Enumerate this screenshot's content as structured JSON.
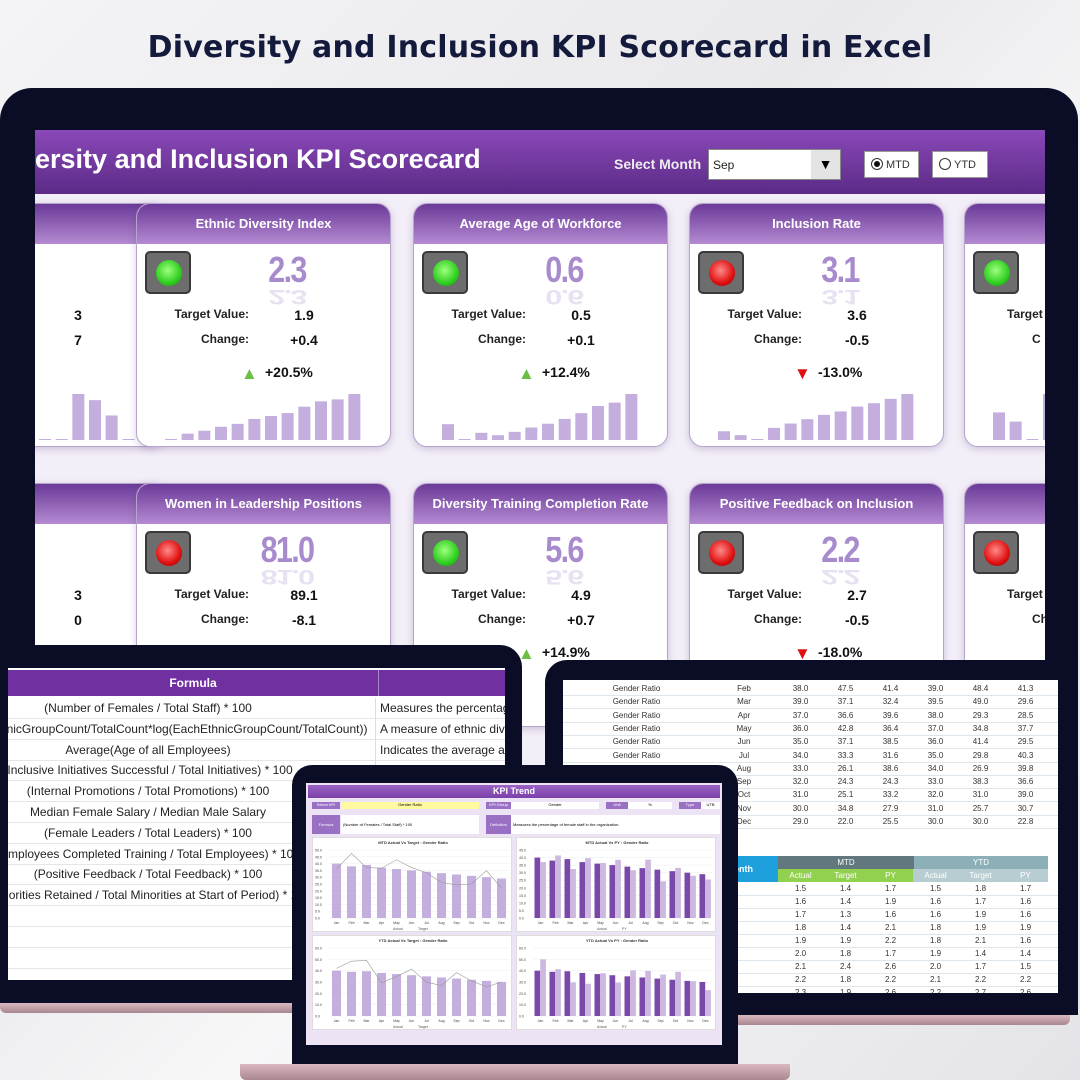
{
  "page_title": "Diversity and Inclusion KPI Scorecard in Excel",
  "dashboard": {
    "title": "Diversity and Inclusion KPI Scorecard",
    "select_month_label": "Select Month",
    "selected_month": "Sep",
    "dropdown_icon": "triangle-down",
    "mtd_label": "MTD",
    "ytd_label": "YTD",
    "period_selected": "MTD",
    "target_label": "Target Value:",
    "change_label": "Change:",
    "colors": {
      "header": "#6b3a98",
      "value": "#a88bcc",
      "spark": "#c4aede",
      "up": "#6abf45",
      "down": "#e01010"
    },
    "cards": [
      {
        "row": 1,
        "title": "",
        "status": "",
        "value": "",
        "target": "3",
        "change": "7",
        "pct": "",
        "dir": "",
        "spark": [
          0,
          0,
          0,
          0,
          0,
          0,
          0,
          0,
          3,
          2.6,
          1.6,
          0
        ]
      },
      {
        "row": 1,
        "title": "Ethnic Diversity Index",
        "status": "green",
        "value": "2.3",
        "target": "1.9",
        "change": "+0.4",
        "pct": "+20.5%",
        "dir": "up",
        "spark": [
          0,
          1.3,
          1.9,
          2.7,
          3.3,
          4.3,
          4.9,
          5.5,
          6.8,
          7.9,
          8.3,
          9.4
        ]
      },
      {
        "row": 1,
        "title": "Average Age of Workforce",
        "status": "green",
        "value": "0.6",
        "target": "0.5",
        "change": "+0.1",
        "pct": "+12.4%",
        "dir": "up",
        "spark": [
          3.3,
          0,
          1.5,
          1,
          1.7,
          2.6,
          3.4,
          4.4,
          5.6,
          7.1,
          7.8,
          9.6
        ]
      },
      {
        "row": 1,
        "title": "Inclusion Rate",
        "status": "red",
        "value": "3.1",
        "target": "3.6",
        "change": "-0.5",
        "pct": "-13.0%",
        "dir": "down",
        "spark": [
          1.8,
          1,
          0,
          2.5,
          3.4,
          4.3,
          5.2,
          5.9,
          6.9,
          7.6,
          8.5,
          9.5
        ]
      },
      {
        "row": 1,
        "title": "Inte",
        "status": "green",
        "value": "",
        "target": "",
        "change": "",
        "pct": "",
        "dir": "",
        "lbl_partial": [
          "Target",
          "C"
        ],
        "spark": [
          1.5,
          1,
          0,
          2.5,
          0,
          0,
          0,
          0,
          0,
          0,
          0,
          0
        ]
      },
      {
        "row": 2,
        "title": "",
        "status": "",
        "value": "",
        "target": "3",
        "change": "0",
        "pct": "",
        "dir": "",
        "spark": []
      },
      {
        "row": 2,
        "title": "Women in Leadership Positions",
        "status": "red",
        "value": "81.0",
        "target": "89.1",
        "change": "-8.1",
        "pct": "-9.1%",
        "dir": "down",
        "spark": []
      },
      {
        "row": 2,
        "title": "Diversity Training Completion Rate",
        "status": "green",
        "value": "5.6",
        "target": "4.9",
        "change": "+0.7",
        "pct": "+14.9%",
        "dir": "up",
        "spark": []
      },
      {
        "row": 2,
        "title": "Positive Feedback on Inclusion",
        "status": "red",
        "value": "2.2",
        "target": "2.7",
        "change": "-0.5",
        "pct": "-18.0%",
        "dir": "down",
        "spark": []
      },
      {
        "row": 2,
        "title": "Minorit",
        "status": "red",
        "value": "",
        "target": "",
        "change": "",
        "pct": "",
        "dir": "",
        "lbl_partial": [
          "Target",
          "Ch"
        ],
        "spark": []
      }
    ]
  },
  "formula_sheet": {
    "header": "Formula",
    "rows": [
      {
        "formula": "(Number of Females / Total Staff) * 100",
        "desc": "Measures the percentage"
      },
      {
        "formula": "-Sum(EachEthnicGroupCount/TotalCount*log(EachEthnicGroupCount/TotalCount))",
        "desc": "A measure of ethnic dive"
      },
      {
        "formula": "Average(Age of all Employees)",
        "desc": "Indicates the average age"
      },
      {
        "formula": "(Inclusive Initiatives Successful / Total Initiatives) * 100",
        "desc": "Percentage of successful"
      },
      {
        "formula": "(Internal Promotions / Total Promotions) * 100",
        "desc": ""
      },
      {
        "formula": "Median Female Salary / Median Male Salary",
        "desc": ""
      },
      {
        "formula": "(Female Leaders / Total Leaders) * 100",
        "desc": ""
      },
      {
        "formula": "(Employees Completed Training / Total Employees) * 100",
        "desc": ""
      },
      {
        "formula": "(Positive Feedback / Total Feedback) * 100",
        "desc": ""
      },
      {
        "formula": "(Minorities Retained / Total Minorities at Start of Period) * 100",
        "desc": ""
      }
    ]
  },
  "data_sheet": {
    "rows": [
      [
        "Gender Ratio",
        "Feb",
        "38.0",
        "47.5",
        "41.4",
        "39.0",
        "48.4",
        "41.3"
      ],
      [
        "Gender Ratio",
        "Mar",
        "39.0",
        "37.1",
        "32.4",
        "39.5",
        "49.0",
        "29.6"
      ],
      [
        "Gender Ratio",
        "Apr",
        "37.0",
        "36.6",
        "39.6",
        "38.0",
        "29.3",
        "28.5"
      ],
      [
        "Gender Ratio",
        "May",
        "36.0",
        "42.8",
        "36.4",
        "37.0",
        "34.8",
        "37.7"
      ],
      [
        "Gender Ratio",
        "Jun",
        "35.0",
        "37.1",
        "38.5",
        "36.0",
        "41.4",
        "29.5"
      ],
      [
        "Gender Ratio",
        "Jul",
        "34.0",
        "33.3",
        "31.6",
        "35.0",
        "29.8",
        "40.3"
      ],
      [
        "",
        "Aug",
        "33.0",
        "26.1",
        "38.6",
        "34.0",
        "26.9",
        "39.8"
      ],
      [
        "",
        "Sep",
        "32.0",
        "24.3",
        "24.3",
        "33.0",
        "38.3",
        "36.6"
      ],
      [
        "",
        "Oct",
        "31.0",
        "25.1",
        "33.2",
        "32.0",
        "31.0",
        "39.0"
      ],
      [
        "",
        "Nov",
        "30.0",
        "34.8",
        "27.9",
        "31.0",
        "25.7",
        "30.7"
      ],
      [
        "",
        "Dec",
        "29.0",
        "22.0",
        "25.5",
        "30.0",
        "30.0",
        "22.8"
      ]
    ],
    "summary": {
      "month_header": "Month",
      "mtd": "MTD",
      "ytd": "YTD",
      "sub": [
        "Actual",
        "Target",
        "PY",
        "Actual",
        "Target",
        "PY"
      ],
      "rows": [
        [
          "Jan",
          "1.5",
          "1.4",
          "1.7",
          "1.5",
          "1.8",
          "1.7"
        ],
        [
          "Feb",
          "1.6",
          "1.4",
          "1.9",
          "1.6",
          "1.7",
          "1.6"
        ],
        [
          "Mar",
          "1.7",
          "1.3",
          "1.6",
          "1.6",
          "1.9",
          "1.6"
        ],
        [
          "Apr",
          "1.8",
          "1.4",
          "2.1",
          "1.8",
          "1.9",
          "1.9"
        ],
        [
          "May",
          "1.9",
          "1.9",
          "2.2",
          "1.8",
          "2.1",
          "1.6"
        ],
        [
          "Jun",
          "2.0",
          "1.8",
          "1.7",
          "1.9",
          "1.4",
          "1.4"
        ],
        [
          "Jul",
          "2.1",
          "2.4",
          "2.6",
          "2.0",
          "1.7",
          "1.5"
        ],
        [
          "Aug",
          "2.2",
          "1.8",
          "2.2",
          "2.1",
          "2.2",
          "2.2"
        ],
        [
          "Sep",
          "2.3",
          "1.9",
          "2.6",
          "2.2",
          "2.7",
          "2.6"
        ]
      ]
    }
  },
  "kpi_trend": {
    "title": "KPI Trend",
    "select_kpi_label": "Select KPI",
    "select_kpi": "Gender Ratio",
    "group_label": "KPI Group",
    "group": "Gender",
    "unit_label": "Unit",
    "unit": "%",
    "type_label": "Type",
    "type": "UTB",
    "formula_label": "Formula",
    "formula": "(Number of Females / Total Staff) * 100",
    "definition_label": "Definition",
    "definition": "Measures the percentage of female staff in the organization."
  },
  "chart_data": [
    {
      "type": "bar",
      "title": "MTD Actual Vs Target : Gender Ratio",
      "categories": [
        "Jan",
        "Feb",
        "Mar",
        "Apr",
        "May",
        "Jun",
        "Jul",
        "Aug",
        "Sep",
        "Oct",
        "Nov",
        "Dec"
      ],
      "series": [
        {
          "name": "Actual",
          "kind": "bar",
          "values": [
            40,
            38,
            39,
            37,
            36,
            35,
            34,
            33,
            32,
            31,
            30,
            29
          ]
        },
        {
          "name": "Target",
          "kind": "line",
          "values": [
            36,
            47.5,
            37.1,
            36.6,
            42.8,
            37.1,
            33.3,
            26.1,
            24.3,
            25.1,
            34.8,
            22
          ]
        }
      ],
      "ylim": [
        0,
        50
      ],
      "yticks": [
        "50.0",
        "45.0",
        "40.0",
        "35.0",
        "30.0",
        "25.0",
        "20.0",
        "15.0",
        "10.0",
        "5.0",
        "0.0"
      ]
    },
    {
      "type": "bar",
      "title": "MTD Actual Vs PY : Gender Ratio",
      "categories": [
        "Jan",
        "Feb",
        "Mar",
        "Apr",
        "May",
        "Jun",
        "Jul",
        "Aug",
        "Sep",
        "Oct",
        "Nov",
        "Dec"
      ],
      "series": [
        {
          "name": "Actual",
          "kind": "bar",
          "values": [
            40,
            38,
            39,
            37,
            36,
            35,
            34,
            33,
            32,
            31,
            30,
            29
          ]
        },
        {
          "name": "PY",
          "kind": "bar",
          "values": [
            37,
            41.4,
            32.4,
            39.6,
            36.4,
            38.5,
            31.6,
            38.6,
            24.3,
            33.2,
            27.9,
            25.5
          ]
        }
      ],
      "ylim": [
        0,
        45
      ],
      "yticks": [
        "45.0",
        "40.0",
        "35.0",
        "30.0",
        "25.0",
        "20.0",
        "15.0",
        "10.0",
        "5.0",
        "0.0"
      ]
    },
    {
      "type": "bar",
      "title": "YTD Actual Vs Target : Gender Ratio",
      "categories": [
        "Jan",
        "Feb",
        "Mar",
        "Apr",
        "May",
        "Jun",
        "Jul",
        "Aug",
        "Sep",
        "Oct",
        "Nov",
        "Dec"
      ],
      "series": [
        {
          "name": "Actual",
          "kind": "bar",
          "values": [
            40,
            39,
            39.5,
            38,
            37,
            36,
            35,
            34,
            33,
            32,
            31,
            30
          ]
        },
        {
          "name": "Target",
          "kind": "line",
          "values": [
            42,
            48.4,
            49,
            29.3,
            34.8,
            41.4,
            29.8,
            26.9,
            38.3,
            31,
            25.7,
            30
          ]
        }
      ],
      "ylim": [
        0,
        60
      ],
      "yticks": [
        "60.0",
        "50.0",
        "40.0",
        "30.0",
        "20.0",
        "10.0",
        "0.0"
      ]
    },
    {
      "type": "bar",
      "title": "YTD Actual Vs PY : Gender Ratio",
      "categories": [
        "Jan",
        "Feb",
        "Mar",
        "Apr",
        "May",
        "Jun",
        "Jul",
        "Aug",
        "Sep",
        "Oct",
        "Nov",
        "Dec"
      ],
      "series": [
        {
          "name": "Actual",
          "kind": "bar",
          "values": [
            40,
            39,
            39.5,
            38,
            37,
            36,
            35,
            34,
            33,
            32,
            31,
            30
          ]
        },
        {
          "name": "PY",
          "kind": "bar",
          "values": [
            50,
            41.3,
            29.6,
            28.5,
            37.7,
            29.5,
            40.3,
            39.8,
            36.6,
            39,
            30.7,
            22.8
          ]
        }
      ],
      "ylim": [
        0,
        60
      ],
      "yticks": [
        "60.0",
        "50.0",
        "40.0",
        "30.0",
        "20.0",
        "10.0",
        "0.0"
      ]
    }
  ]
}
